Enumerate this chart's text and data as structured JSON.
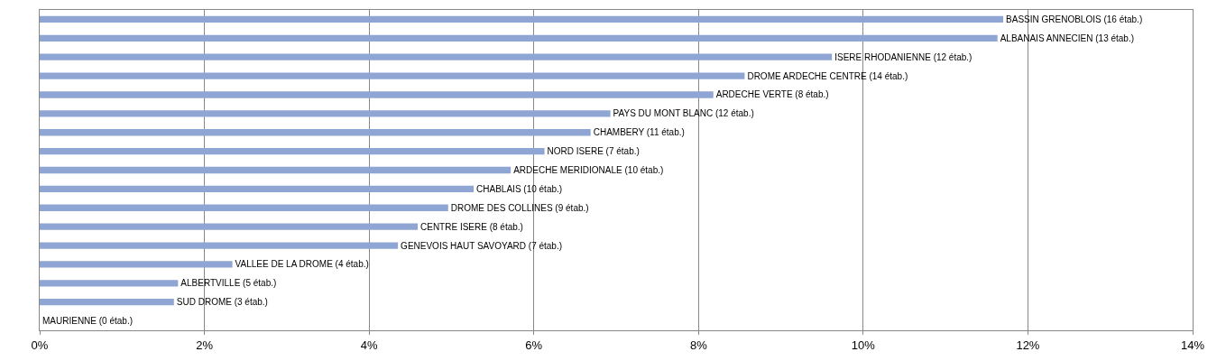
{
  "chart_data": {
    "type": "bar",
    "orientation": "horizontal",
    "categories": [
      "BASSIN GRENOBLOIS (16 étab.)",
      "ALBANAIS ANNECIEN (13 étab.)",
      "ISERE RHODANIENNE (12 étab.)",
      "DROME ARDECHE CENTRE (14 étab.)",
      "ARDECHE VERTE (8 étab.)",
      "PAYS DU MONT BLANC (12 étab.)",
      "CHAMBERY (11 étab.)",
      "NORD ISERE (7 étab.)",
      "ARDECHE MERIDIONALE (10 étab.)",
      "CHABLAIS (10 étab.)",
      "DROME DES COLLINES (9 étab.)",
      "CENTRE ISERE (8 étab.)",
      "GENEVOIS HAUT SAVOYARD (7 étab.)",
      "VALLEE DE LA DROME (4 étab.)",
      "ALBERTVILLE (5 étab.)",
      "SUD DROME (3 étab.)",
      "MAURIENNE (0 étab.)"
    ],
    "values": [
      11.7,
      11.63,
      9.62,
      8.56,
      8.18,
      6.93,
      6.69,
      6.13,
      5.72,
      5.27,
      4.96,
      4.59,
      4.35,
      2.34,
      1.68,
      1.63,
      0
    ],
    "color": "#8fa6d4",
    "xlim": [
      0,
      14
    ],
    "xticks": [
      {
        "value": 0,
        "label": "0%"
      },
      {
        "value": 2,
        "label": "2%"
      },
      {
        "value": 4,
        "label": "4%"
      },
      {
        "value": 6,
        "label": "6%"
      },
      {
        "value": 8,
        "label": "8%"
      },
      {
        "value": 10,
        "label": "10%"
      },
      {
        "value": 12,
        "label": "12%"
      },
      {
        "value": 14,
        "label": "14%"
      }
    ],
    "grid": "x",
    "tick_labels": "x"
  }
}
